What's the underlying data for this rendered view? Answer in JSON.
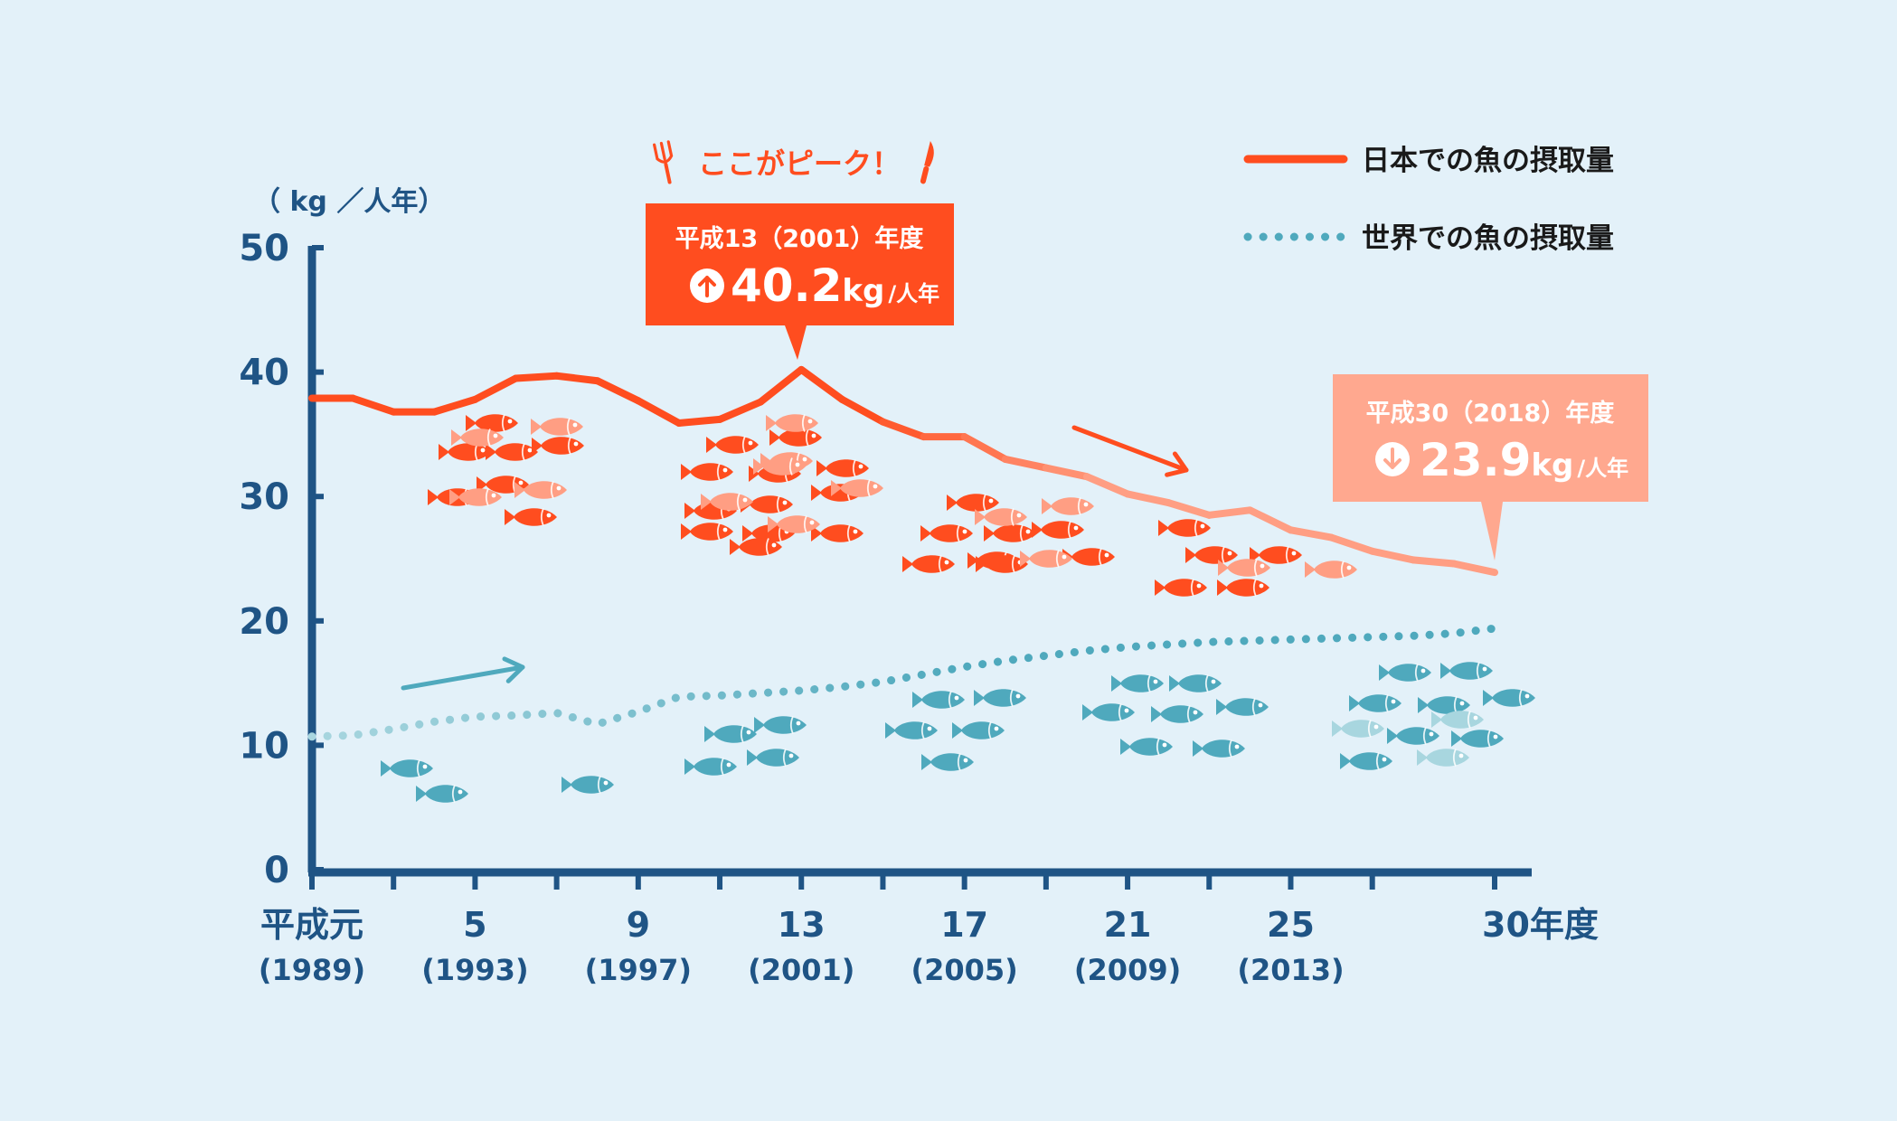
{
  "chart_data": {
    "type": "line",
    "y_unit_label": "（ kg ／人年）",
    "ylim": [
      0,
      50
    ],
    "y_ticks": [
      "50",
      "40",
      "30",
      "20",
      "10",
      "0"
    ],
    "x": [
      1989,
      1990,
      1991,
      1992,
      1993,
      1994,
      1995,
      1996,
      1997,
      1998,
      1999,
      2000,
      2001,
      2002,
      2003,
      2004,
      2005,
      2006,
      2007,
      2008,
      2009,
      2010,
      2011,
      2012,
      2013,
      2014,
      2015,
      2016,
      2017,
      2018
    ],
    "x_tick_labels": [
      {
        "year": 1989,
        "top": "平成元",
        "bottom": "(1989)"
      },
      {
        "year": 1993,
        "top": "5",
        "bottom": "(1993)"
      },
      {
        "year": 1997,
        "top": "9",
        "bottom": "(1997)"
      },
      {
        "year": 2001,
        "top": "13",
        "bottom": "(2001)"
      },
      {
        "year": 2005,
        "top": "17",
        "bottom": "(2005)"
      },
      {
        "year": 2009,
        "top": "21",
        "bottom": "(2009)"
      },
      {
        "year": 2013,
        "top": "25",
        "bottom": "(2013)"
      },
      {
        "year": 2018,
        "top": "30年度",
        "bottom": ""
      }
    ],
    "series": [
      {
        "name": "日本での魚の摂取量",
        "color": "#ff4d1f",
        "color_light": "#ff9e83",
        "style": "solid",
        "values": [
          37.9,
          37.9,
          36.8,
          36.8,
          37.8,
          39.5,
          39.7,
          39.3,
          37.7,
          35.9,
          36.2,
          37.6,
          40.2,
          37.8,
          36.0,
          34.8,
          34.8,
          33.0,
          32.3,
          31.6,
          30.2,
          29.5,
          28.5,
          28.9,
          27.3,
          26.7,
          25.6,
          24.9,
          24.6,
          23.9
        ]
      },
      {
        "name": "世界での魚の摂取量",
        "color": "#4fa9bd",
        "color_light": "#a8d6df",
        "style": "dotted",
        "values": [
          10.7,
          10.8,
          11.3,
          11.9,
          12.3,
          12.4,
          12.6,
          11.7,
          12.7,
          13.9,
          14.0,
          14.2,
          14.4,
          14.7,
          15.1,
          15.7,
          16.3,
          16.8,
          17.2,
          17.6,
          17.9,
          18.1,
          18.3,
          18.4,
          18.5,
          18.6,
          18.7,
          18.8,
          19.0,
          19.4
        ]
      }
    ],
    "peak_note": "ここがピーク！",
    "peak_callout": {
      "period": "平成13（2001）年度",
      "value": "40.2",
      "unit_kg": "kg",
      "unit_per": "/人年",
      "color": "#ff4d1f"
    },
    "end_callout": {
      "period": "平成30（2018）年度",
      "value": "23.9",
      "unit_kg": "kg",
      "unit_per": "/人年",
      "color": "#ffa88f"
    },
    "legend_placement": "top-right",
    "grid": false
  },
  "colors": {
    "background": "#e3f1f9",
    "axis": "#1f5485"
  },
  "icons": [
    "fork-icon",
    "knife-icon",
    "arrow-up-icon",
    "arrow-down-icon",
    "fish-icon"
  ]
}
